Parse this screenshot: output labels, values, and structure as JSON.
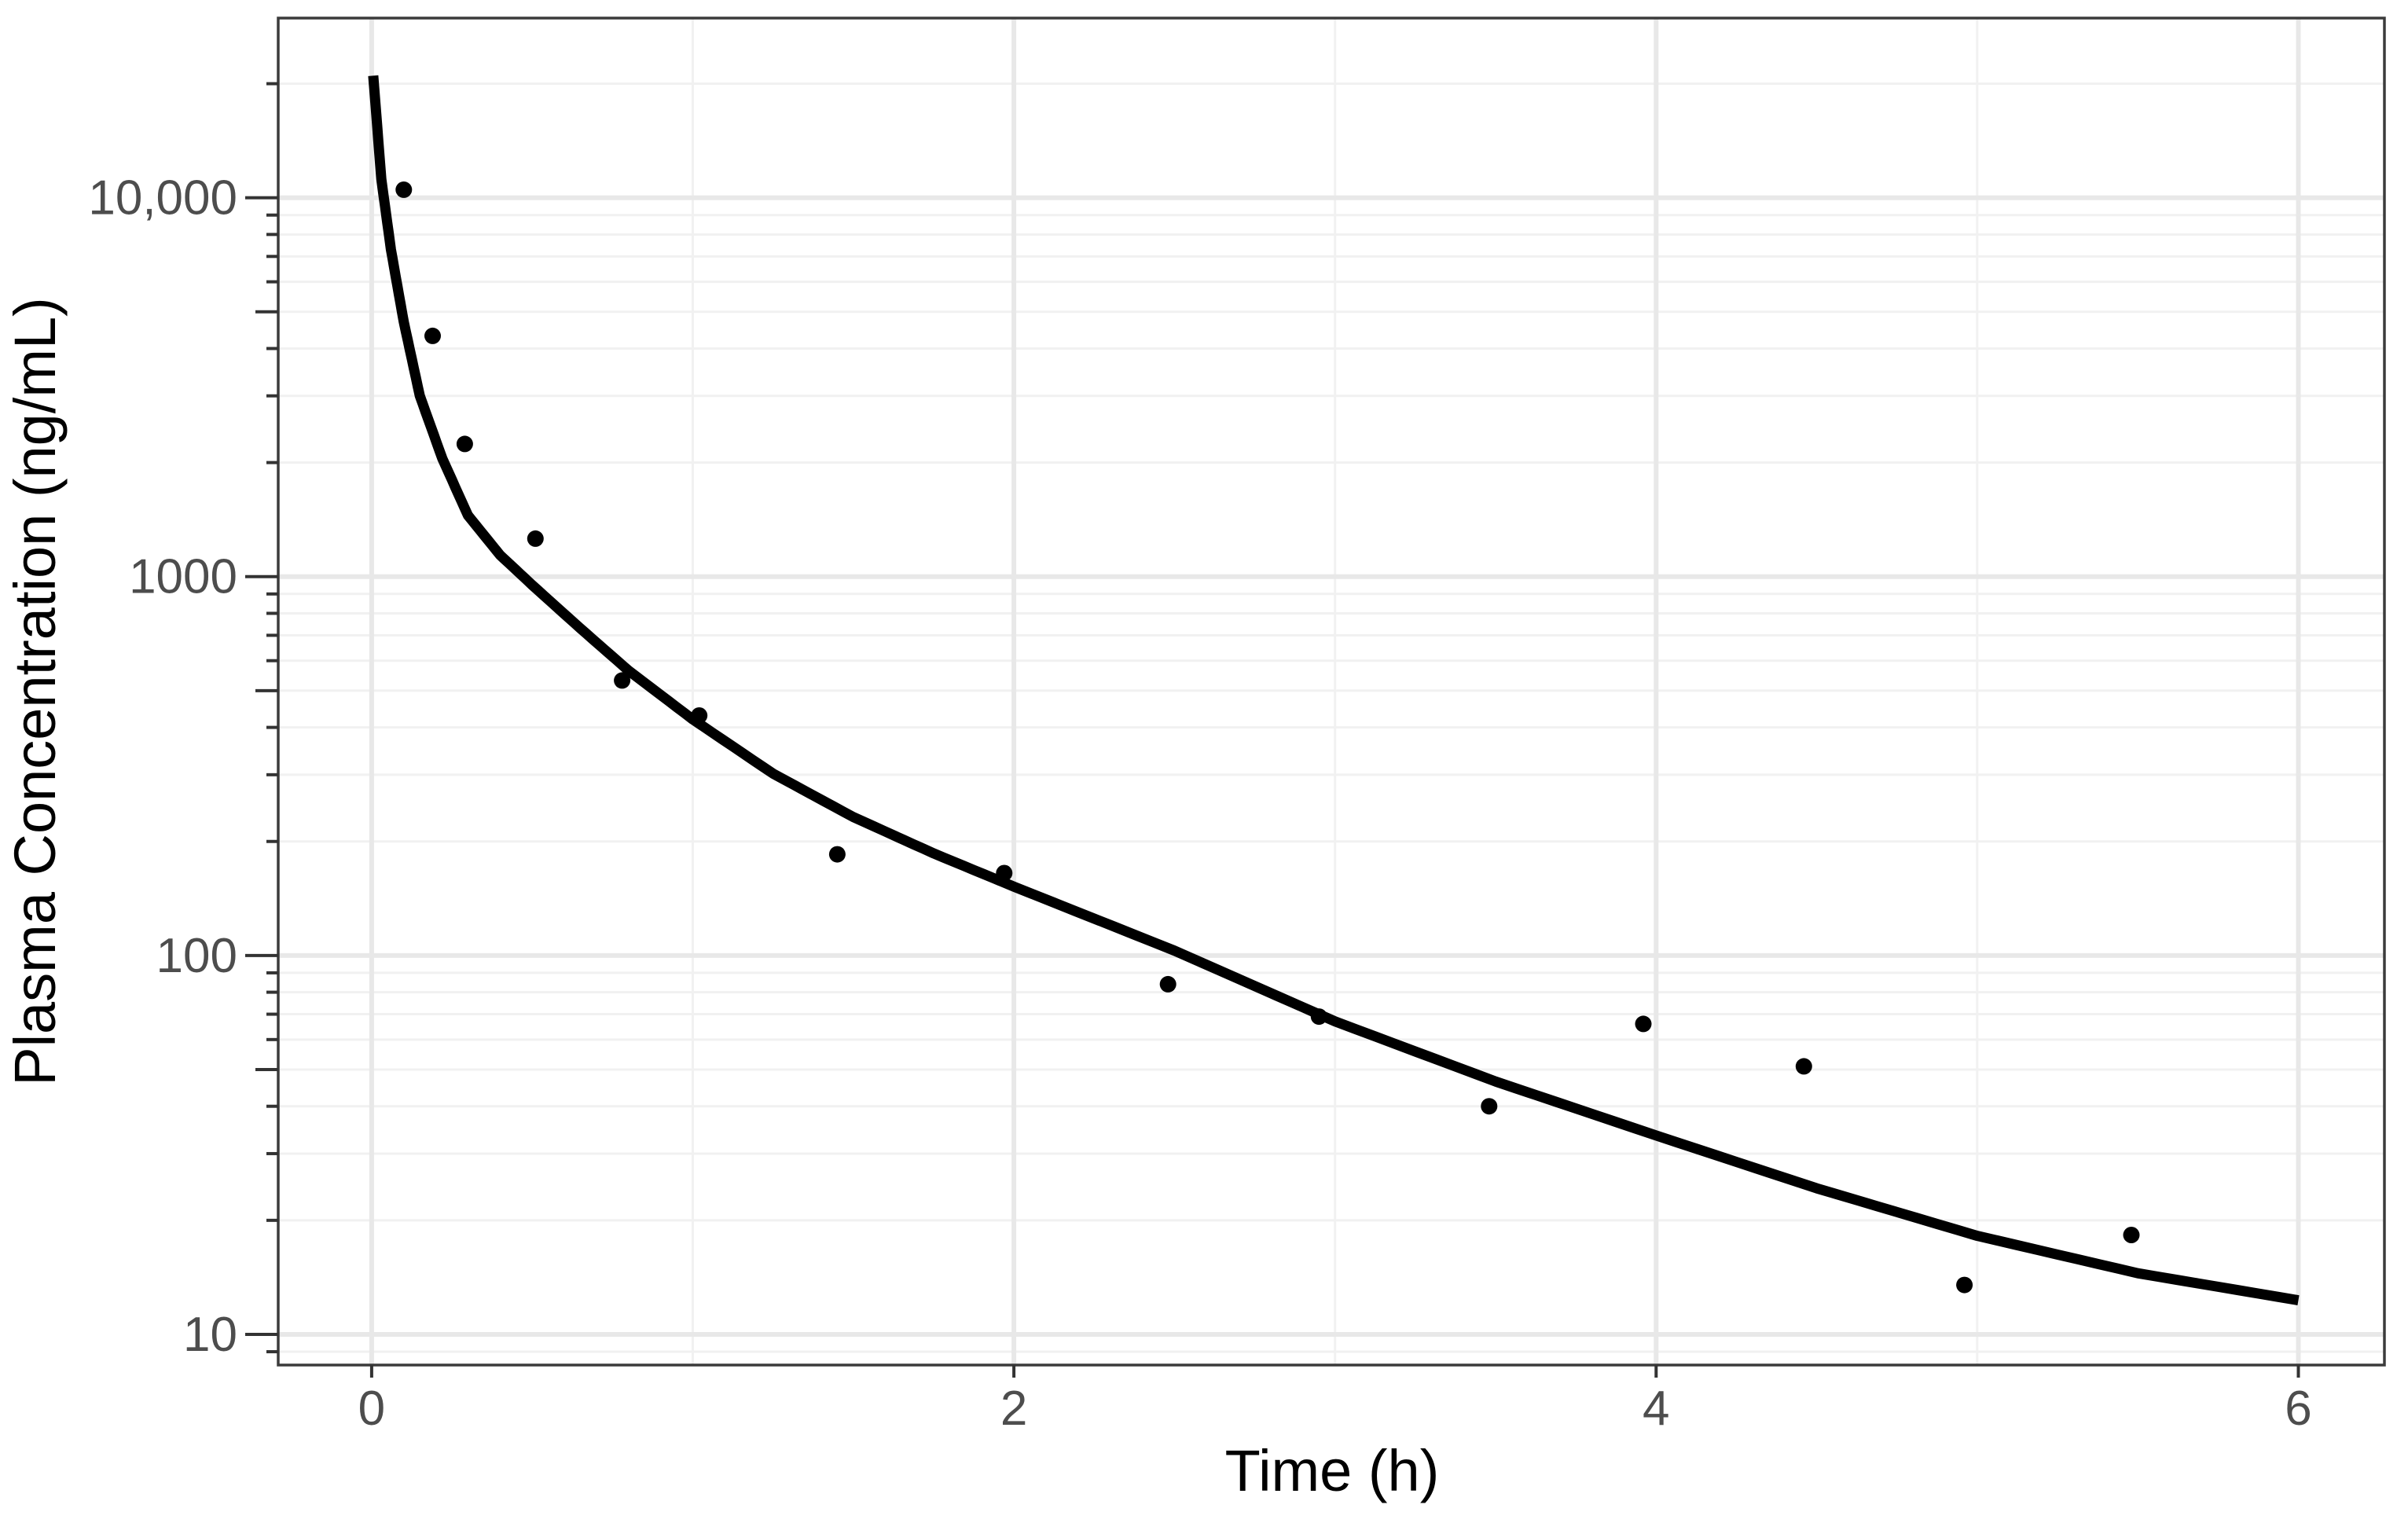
{
  "chart_data": {
    "type": "scatter",
    "title": "",
    "xlabel": "Time (h)",
    "ylabel": "Plasma Concentration (ng/mL)",
    "grid": true,
    "legend_position": "none",
    "x_axis": {
      "scale": "linear",
      "lim": [
        -0.291,
        6.268
      ],
      "major_ticks": [
        0,
        2,
        4,
        6
      ],
      "tick_labels": [
        "0",
        "2",
        "4",
        "6"
      ],
      "minor_gridlines": [
        1,
        3,
        5
      ]
    },
    "y_axis": {
      "scale": "log10",
      "lim": [
        8.3,
        29800
      ],
      "major_ticks": [
        10,
        100,
        1000,
        10000
      ],
      "tick_labels": [
        "10",
        "100",
        "1000",
        "10,000"
      ],
      "minor_multiples": [
        2,
        3,
        4,
        5,
        6,
        7,
        8,
        9
      ],
      "logtick_ladder": true
    },
    "series": [
      {
        "name": "observed-concentrations",
        "kind": "points",
        "color": "#000000",
        "points": [
          [
            0.1,
            10500
          ],
          [
            0.19,
            4320
          ],
          [
            0.29,
            2240
          ],
          [
            0.51,
            1260
          ],
          [
            0.78,
            532
          ],
          [
            1.02,
            430
          ],
          [
            1.45,
            185
          ],
          [
            1.97,
            165
          ],
          [
            2.48,
            84
          ],
          [
            2.95,
            69
          ],
          [
            3.48,
            40
          ],
          [
            3.96,
            66
          ],
          [
            4.46,
            51
          ],
          [
            4.96,
            13.5
          ],
          [
            5.48,
            18.3
          ]
        ]
      },
      {
        "name": "fitted-curve",
        "kind": "line",
        "color": "#000000",
        "points": [
          [
            0.005,
            21000
          ],
          [
            0.03,
            11200
          ],
          [
            0.06,
            7300
          ],
          [
            0.1,
            4700
          ],
          [
            0.15,
            3000
          ],
          [
            0.22,
            2050
          ],
          [
            0.3,
            1450
          ],
          [
            0.4,
            1140
          ],
          [
            0.5,
            950
          ],
          [
            0.65,
            730
          ],
          [
            0.8,
            565
          ],
          [
            1.0,
            420
          ],
          [
            1.25,
            302
          ],
          [
            1.5,
            232
          ],
          [
            1.75,
            186
          ],
          [
            2.0,
            152
          ],
          [
            2.5,
            103
          ],
          [
            3.0,
            67
          ],
          [
            3.5,
            46.5
          ],
          [
            4.0,
            33.5
          ],
          [
            4.5,
            24.3
          ],
          [
            5.0,
            18.2
          ],
          [
            5.5,
            14.5
          ],
          [
            6.0,
            12.3
          ]
        ]
      }
    ],
    "style": {
      "background": "#ffffff",
      "panel_border_color": "#3b3b3b",
      "grid_major_color": "#e8e8e8",
      "grid_minor_color": "#f1f1f1",
      "tick_color": "#333333",
      "axis_text_color": "#4d4d4d",
      "axis_title_color": "#000000",
      "point_color": "#000000",
      "line_color": "#000000"
    }
  }
}
